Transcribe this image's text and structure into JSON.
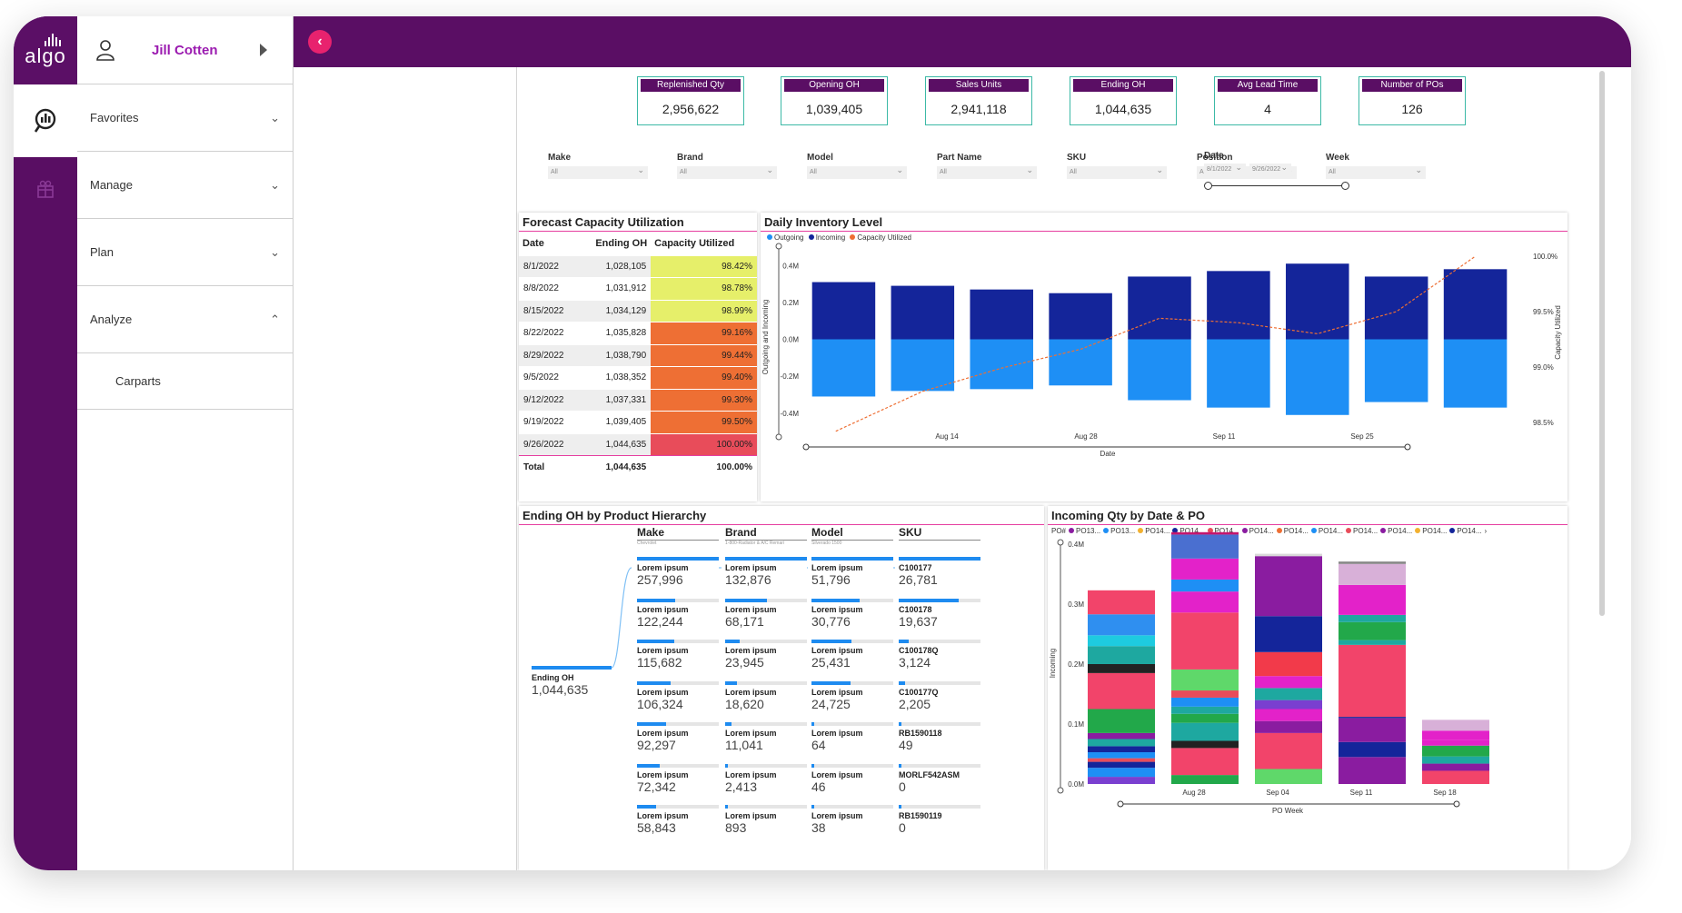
{
  "app": {
    "logo_text": "algo",
    "user_name": "Jill Cotten"
  },
  "nav": {
    "items": [
      {
        "label": "Favorites",
        "chev": "⌄"
      },
      {
        "label": "Manage",
        "chev": "⌄"
      },
      {
        "label": "Plan",
        "chev": "⌄"
      },
      {
        "label": "Analyze",
        "chev": "⌃"
      }
    ],
    "sub_item": "Carparts"
  },
  "kpis": [
    {
      "label": "Replenished Qty",
      "value": "2,956,622"
    },
    {
      "label": "Opening OH",
      "value": "1,039,405"
    },
    {
      "label": "Sales Units",
      "value": "2,941,118"
    },
    {
      "label": "Ending OH",
      "value": "1,044,635"
    },
    {
      "label": "Avg Lead Time",
      "value": "4"
    },
    {
      "label": "Number of POs",
      "value": "126"
    }
  ],
  "slicers": [
    {
      "label": "Make",
      "value": "All"
    },
    {
      "label": "Brand",
      "value": "All"
    },
    {
      "label": "Model",
      "value": "All"
    },
    {
      "label": "Part Name",
      "value": "All"
    },
    {
      "label": "SKU",
      "value": "All"
    },
    {
      "label": "Position",
      "value": "All"
    },
    {
      "label": "Week",
      "value": "All"
    }
  ],
  "date_slicer": {
    "label": "Date",
    "from": "8/1/2022",
    "to": "9/26/2022"
  },
  "forecast": {
    "title": "Forecast Capacity Utilization",
    "headers": [
      "Date",
      "Ending OH",
      "Capacity Utilized"
    ],
    "rows": [
      [
        "8/1/2022",
        "1,028,105",
        "98.42%",
        "#e6ef6a"
      ],
      [
        "8/8/2022",
        "1,031,912",
        "98.78%",
        "#e6ef6a"
      ],
      [
        "8/15/2022",
        "1,034,129",
        "98.99%",
        "#e6ef6a"
      ],
      [
        "8/22/2022",
        "1,035,828",
        "99.16%",
        "#ee6f34"
      ],
      [
        "8/29/2022",
        "1,038,790",
        "99.44%",
        "#ee6f34"
      ],
      [
        "9/5/2022",
        "1,038,352",
        "99.40%",
        "#ee6f34"
      ],
      [
        "9/12/2022",
        "1,037,331",
        "99.30%",
        "#ee6f34"
      ],
      [
        "9/19/2022",
        "1,039,405",
        "99.50%",
        "#ee6f34"
      ],
      [
        "9/26/2022",
        "1,044,635",
        "100.00%",
        "#e84c5a"
      ]
    ],
    "total": [
      "Total",
      "1,044,635",
      "100.00%"
    ]
  },
  "chart_data": [
    {
      "type": "bar",
      "title": "Daily Inventory Level",
      "xlabel": "Date",
      "ylabel": "Outgoing and Incoming",
      "y2label": "Capacity Utilized",
      "legend": [
        "Outgoing",
        "Incoming",
        "Capacity Utilized"
      ],
      "x_ticks": [
        "Aug 14",
        "Aug 28",
        "Sep 11",
        "Sep 25"
      ],
      "y_ticks": [
        "0.4M",
        "0.2M",
        "0.0M",
        "-0.2M",
        "-0.4M"
      ],
      "ylim": [
        -0.48,
        0.48
      ],
      "y2_ticks": [
        "100.0%",
        "99.5%",
        "99.0%",
        "98.5%"
      ],
      "y2lim": [
        98.45,
        100.05
      ],
      "colors": {
        "incoming": "#14259a",
        "outgoing": "#1e8ff5",
        "capacity": "#ee6f34"
      },
      "incoming": [
        0.31,
        0.29,
        0.27,
        0.25,
        0.34,
        0.37,
        0.41,
        0.34,
        0.38
      ],
      "outgoing": [
        -0.31,
        -0.28,
        -0.27,
        -0.25,
        -0.33,
        -0.37,
        -0.41,
        -0.34,
        -0.37
      ],
      "capacity": [
        98.42,
        98.78,
        98.99,
        99.16,
        99.44,
        99.4,
        99.3,
        99.5,
        100.0
      ]
    },
    {
      "type": "bar",
      "stacked": true,
      "title": "Incoming Qty by Date & PO",
      "xlabel": "PO Week",
      "ylabel": "Incoming",
      "legend_prefix": "PO#",
      "legend": [
        "PO13...",
        "PO13...",
        "PO14...",
        "PO14...",
        "PO14...",
        "PO14...",
        "PO14...",
        "PO14...",
        "PO14...",
        "PO14...",
        "PO14...",
        "PO14..."
      ],
      "legend_colors": [
        "#8a1ca0",
        "#1e8ff5",
        "#f2b130",
        "#14259a",
        "#e84c5a",
        "#8a1ca0",
        "#ee6f34",
        "#1e8ff5",
        "#e84c5a",
        "#8a1ca0",
        "#f2b130",
        "#14259a"
      ],
      "x_ticks": [
        "Aug 28",
        "Sep 04",
        "Sep 11",
        "Sep 18"
      ],
      "y_ticks": [
        "0.4M",
        "0.3M",
        "0.2M",
        "0.1M",
        "0.0M"
      ],
      "ylim": [
        0,
        0.4
      ],
      "stacks": [
        [
          [
            0.012,
            "#7a3fd0"
          ],
          [
            0.015,
            "#1e8ff5"
          ],
          [
            0.01,
            "#14259a"
          ],
          [
            0.006,
            "#e84c5a"
          ],
          [
            0.01,
            "#1e8ff5"
          ],
          [
            0.01,
            "#14259a"
          ],
          [
            0.012,
            "#1ea8a0"
          ],
          [
            0.01,
            "#8a1ca0"
          ],
          [
            0.04,
            "#22a84a"
          ],
          [
            0.06,
            "#f2446a"
          ],
          [
            0.015,
            "#222"
          ],
          [
            0.03,
            "#1ea8a0"
          ],
          [
            0.018,
            "#1ecbe0"
          ],
          [
            0.035,
            "#2f8ff0"
          ],
          [
            0.04,
            "#f2446a"
          ]
        ],
        [
          [
            0.015,
            "#22a84a"
          ],
          [
            0.045,
            "#f2446a"
          ],
          [
            0.012,
            "#222"
          ],
          [
            0.03,
            "#1ea8a0"
          ],
          [
            0.015,
            "#22a84a"
          ],
          [
            0.012,
            "#1ea8a0"
          ],
          [
            0.015,
            "#1e8ff5"
          ],
          [
            0.012,
            "#e84c5a"
          ],
          [
            0.035,
            "#5fd86a"
          ],
          [
            0.095,
            "#f2446a"
          ],
          [
            0.035,
            "#e322c9"
          ],
          [
            0.02,
            "#1e8ff5"
          ],
          [
            0.035,
            "#e322c9"
          ],
          [
            0.04,
            "#4a6fd0"
          ],
          [
            0.004,
            "#c4166e"
          ]
        ],
        [
          [
            0.025,
            "#5fd86a"
          ],
          [
            0.06,
            "#f2446a"
          ],
          [
            0.02,
            "#8a1ca0"
          ],
          [
            0.02,
            "#e322c9"
          ],
          [
            0.015,
            "#7a3fd0"
          ],
          [
            0.02,
            "#1ea8a0"
          ],
          [
            0.02,
            "#e322c9"
          ],
          [
            0.04,
            "#f23a4a"
          ],
          [
            0.06,
            "#14259a"
          ],
          [
            0.07,
            "#8a1ca0"
          ],
          [
            0.03,
            "#8a1ca0"
          ],
          [
            0.004,
            "#d8d8d8"
          ]
        ],
        [
          [
            0.045,
            "#8a1ca0"
          ],
          [
            0.025,
            "#14259a"
          ],
          [
            0.04,
            "#8a1ca0"
          ],
          [
            0.002,
            "#14259a"
          ],
          [
            0.12,
            "#f2446a"
          ],
          [
            0.008,
            "#1ea8a0"
          ],
          [
            0.03,
            "#22a84a"
          ],
          [
            0.012,
            "#1ea8a0"
          ],
          [
            0.05,
            "#e322c9"
          ],
          [
            0.035,
            "#d8b0d8"
          ],
          [
            0.004,
            "#888"
          ]
        ],
        [
          [
            0.022,
            "#f2446a"
          ],
          [
            0.012,
            "#8a1ca0"
          ],
          [
            0.012,
            "#1ea8a0"
          ],
          [
            0.018,
            "#22a84a"
          ],
          [
            0.01,
            "#e322c9"
          ],
          [
            0.015,
            "#e322c9"
          ],
          [
            0.018,
            "#d8b0d8"
          ]
        ]
      ]
    }
  ],
  "hierarchy": {
    "title": "Ending OH by Product Hierarchy",
    "root_label": "Ending OH",
    "root_value": "1,044,635",
    "columns": [
      {
        "head": "Make",
        "sub": "Chevrolet",
        "nodes": [
          [
            "Lorem ipsum",
            "257,996",
            1
          ],
          [
            "Lorem ipsum",
            "122,244",
            0.47
          ],
          [
            "Lorem ipsum",
            "115,682",
            0.45
          ],
          [
            "Lorem ipsum",
            "106,324",
            0.41
          ],
          [
            "Lorem ipsum",
            "92,297",
            0.36
          ],
          [
            "Lorem ipsum",
            "72,342",
            0.28
          ],
          [
            "Lorem ipsum",
            "58,843",
            0.23
          ]
        ]
      },
      {
        "head": "Brand",
        "sub": "1-800-Radiator & A/C Remari",
        "nodes": [
          [
            "Lorem ipsum",
            "132,876",
            1
          ],
          [
            "Lorem ipsum",
            "68,171",
            0.51
          ],
          [
            "Lorem ipsum",
            "23,945",
            0.18
          ],
          [
            "Lorem ipsum",
            "18,620",
            0.14
          ],
          [
            "Lorem ipsum",
            "11,041",
            0.08
          ],
          [
            "Lorem ipsum",
            "2,413",
            0.02
          ],
          [
            "Lorem ipsum",
            "893",
            0.01
          ]
        ]
      },
      {
        "head": "Model",
        "sub": "Silverado 1500",
        "nodes": [
          [
            "Lorem ipsum",
            "51,796",
            1
          ],
          [
            "Lorem ipsum",
            "30,776",
            0.59
          ],
          [
            "Lorem ipsum",
            "25,431",
            0.49
          ],
          [
            "Lorem ipsum",
            "24,725",
            0.48
          ],
          [
            "Lorem ipsum",
            "64",
            0.01
          ],
          [
            "Lorem ipsum",
            "46",
            0.01
          ],
          [
            "Lorem ipsum",
            "38",
            0.01
          ]
        ]
      },
      {
        "head": "SKU",
        "sub": "",
        "nodes": [
          [
            "C100177",
            "26,781",
            1
          ],
          [
            "C100178",
            "19,637",
            0.73
          ],
          [
            "C100178Q",
            "3,124",
            0.12
          ],
          [
            "C100177Q",
            "2,205",
            0.08
          ],
          [
            "RB1590118",
            "49",
            0.01
          ],
          [
            "MORLF542ASM",
            "0",
            0
          ],
          [
            "RB1590119",
            "0",
            0
          ]
        ]
      }
    ]
  }
}
